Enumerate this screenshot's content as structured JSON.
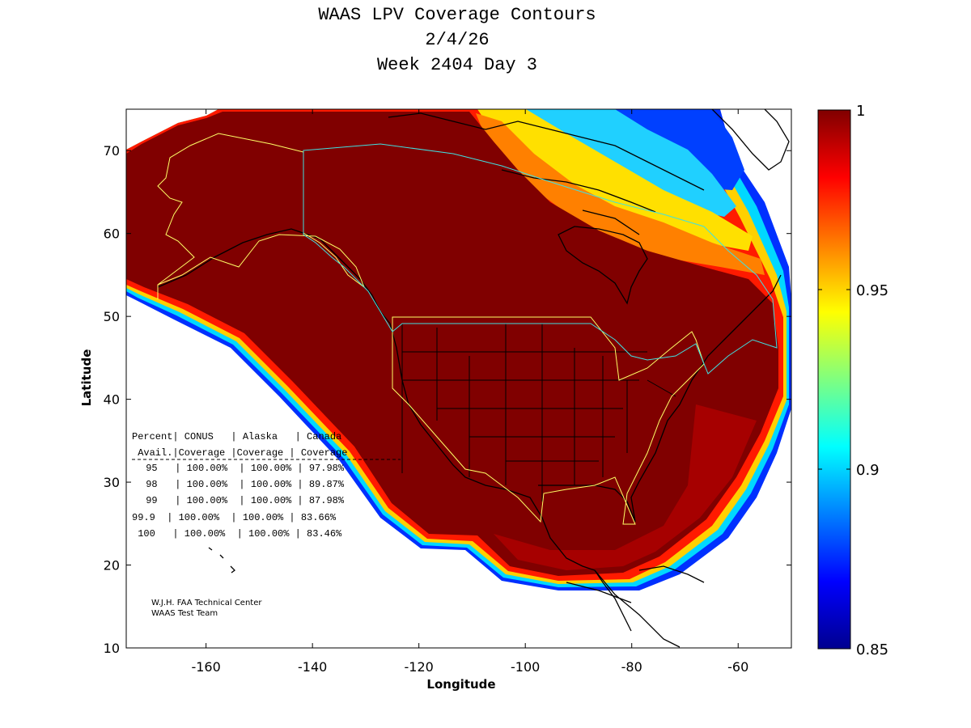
{
  "titles": [
    "WAAS LPV Coverage Contours",
    "2/4/26",
    "Week 2404 Day 3"
  ],
  "map": {
    "xlabel": "Longitude",
    "ylabel": "Latitude",
    "lon_ticks": [
      -160,
      -140,
      -120,
      -100,
      -80,
      -60
    ],
    "lat_ticks": [
      10,
      20,
      30,
      40,
      50,
      60,
      70
    ],
    "lon_range": [
      -175,
      -50
    ],
    "lat_range": [
      10,
      75
    ]
  },
  "colorbar": {
    "ticks": [
      "1",
      "0.95",
      "0.9",
      "0.85"
    ],
    "range": [
      0.85,
      1
    ],
    "colormap": "jet"
  },
  "coverage_table": {
    "header_line1": "Percent| CONUS   | Alaska   | Canada",
    "header_line2": " Avail.|Coverage |Coverage | Coverage",
    "rows": [
      " 95   | 100.00%  | 100.00% | 97.98%",
      " 98   | 100.00%  | 100.00% | 89.87%",
      " 99   | 100.00%  | 100.00% | 87.98%",
      "99.9  | 100.00%  | 100.00% | 83.66%",
      " 100   | 100.00%  | 100.00% | 83.46%"
    ]
  },
  "credits": [
    "W.J.H. FAA Technical Center",
    "WAAS Test Team"
  ],
  "colors": {
    "full_coverage": "#800000",
    "outline_conus": "#ffff66",
    "outline_canada": "#40e0e0",
    "coastline": "#000000"
  }
}
